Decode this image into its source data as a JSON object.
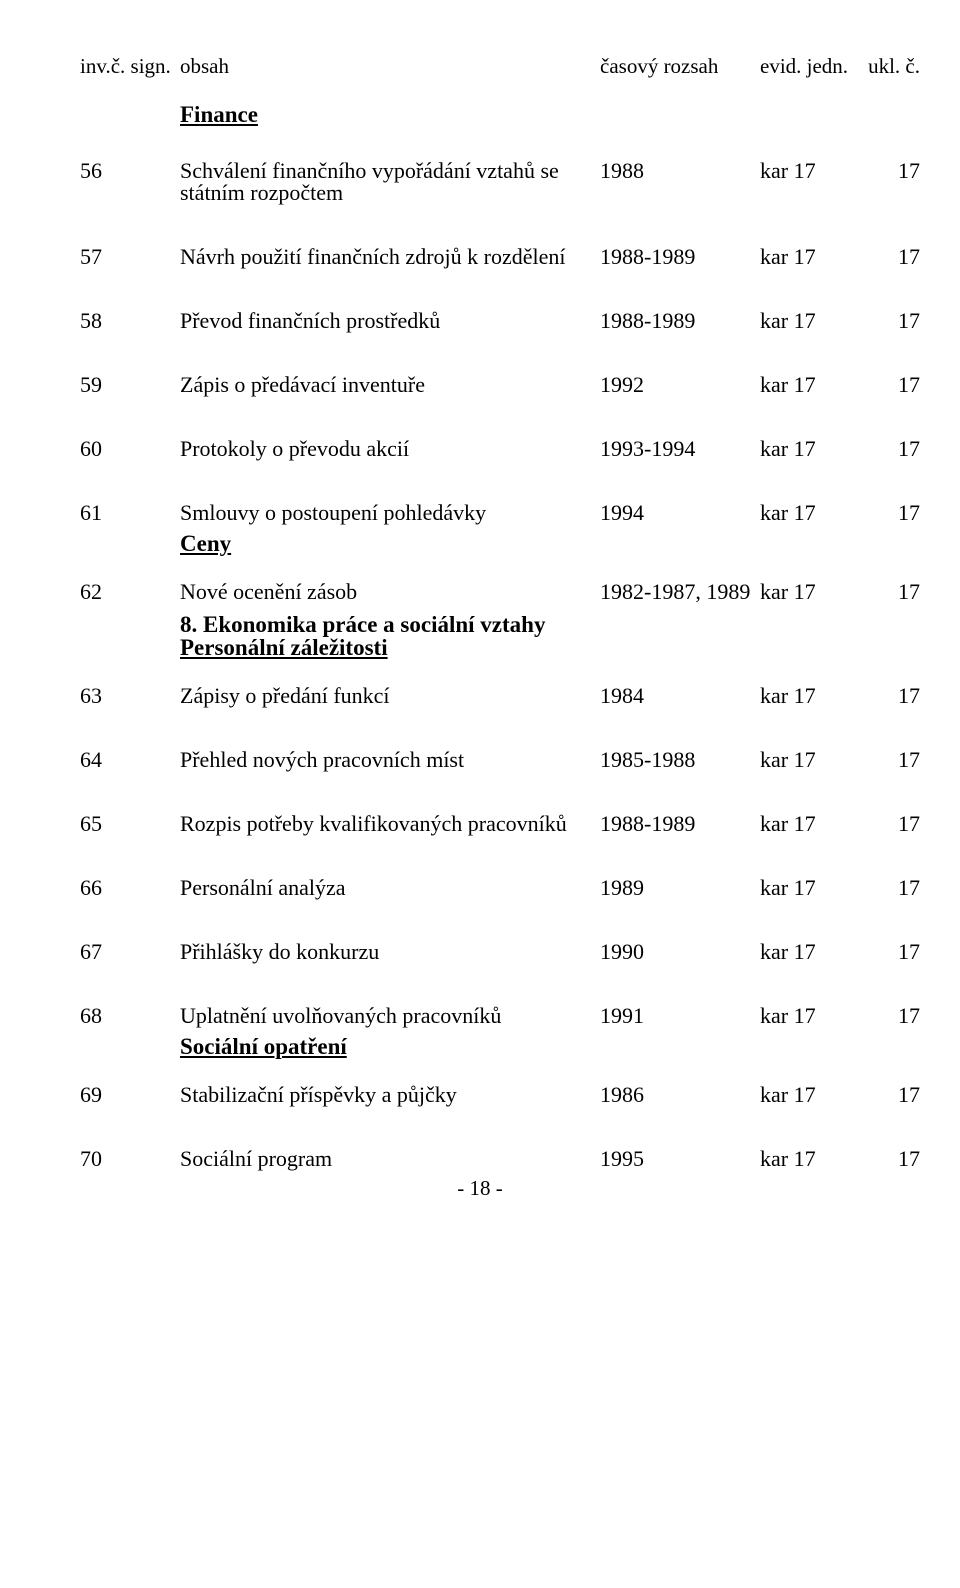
{
  "header": {
    "sign": "inv.č. sign.",
    "obsah": "obsah",
    "time": "časový rozsah",
    "evid": "evid. jedn.",
    "ukl": "ukl. č."
  },
  "sections": {
    "finance": "Finance",
    "ceny": "Ceny",
    "eko": "8. Ekonomika práce a sociální vztahy",
    "personal": "Personální záležitosti",
    "socopat": "Sociální opatření"
  },
  "rows": {
    "56": {
      "n": "56",
      "t": "Schválení finančního vypořádání vztahů se státním rozpočtem",
      "r": "1988",
      "e": "kar 17",
      "u": "17"
    },
    "57": {
      "n": "57",
      "t": "Návrh použití finančních zdrojů k rozdělení",
      "r": "1988-1989",
      "e": "kar 17",
      "u": "17"
    },
    "58": {
      "n": "58",
      "t": "Převod finančních prostředků",
      "r": "1988-1989",
      "e": "kar 17",
      "u": "17"
    },
    "59": {
      "n": "59",
      "t": "Zápis o předávací inventuře",
      "r": "1992",
      "e": "kar 17",
      "u": "17"
    },
    "60": {
      "n": "60",
      "t": "Protokoly o převodu akcií",
      "r": "1993-1994",
      "e": "kar 17",
      "u": "17"
    },
    "61": {
      "n": "61",
      "t": "Smlouvy o postoupení pohledávky",
      "r": "1994",
      "e": "kar 17",
      "u": "17"
    },
    "62": {
      "n": "62",
      "t": "Nové ocenění zásob",
      "r": "1982-1987, 1989",
      "e": "kar 17",
      "u": "17"
    },
    "63": {
      "n": "63",
      "t": "Zápisy o předání funkcí",
      "r": "1984",
      "e": "kar 17",
      "u": "17"
    },
    "64": {
      "n": "64",
      "t": "Přehled nových pracovních míst",
      "r": "1985-1988",
      "e": "kar 17",
      "u": "17"
    },
    "65": {
      "n": "65",
      "t": "Rozpis potřeby kvalifikovaných pracovníků",
      "r": "1988-1989",
      "e": "kar 17",
      "u": "17"
    },
    "66": {
      "n": "66",
      "t": "Personální analýza",
      "r": "1989",
      "e": "kar 17",
      "u": "17"
    },
    "67": {
      "n": "67",
      "t": "Přihlášky do konkurzu",
      "r": "1990",
      "e": "kar 17",
      "u": "17"
    },
    "68": {
      "n": "68",
      "t": "Uplatnění uvolňovaných pracovníků",
      "r": "1991",
      "e": "kar 17",
      "u": "17"
    },
    "69": {
      "n": "69",
      "t": "Stabilizační příspěvky a půjčky",
      "r": "1986",
      "e": "kar 17",
      "u": "17"
    },
    "70": {
      "n": "70",
      "t": "Sociální program",
      "r": "1995",
      "e": "kar 17",
      "u": "17"
    }
  },
  "page": "- 18 -"
}
